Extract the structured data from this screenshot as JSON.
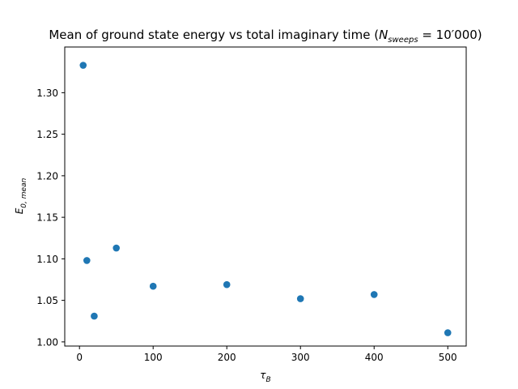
{
  "chart_data": {
    "type": "scatter",
    "title_prefix": "Mean of ground state energy vs total imaginary time (",
    "title_math": {
      "symbol": "N",
      "subscript": "sweeps",
      "equals": " = 10′000"
    },
    "title_suffix": ")",
    "xlabel": {
      "symbol": "τ",
      "subscript": "B"
    },
    "ylabel": {
      "symbol": "E",
      "subscript": "0, mean"
    },
    "xlim": [
      -20,
      525
    ],
    "ylim": [
      0.995,
      1.355
    ],
    "xticks": [
      0,
      100,
      200,
      300,
      400,
      500
    ],
    "yticks": [
      1.0,
      1.05,
      1.1,
      1.15,
      1.2,
      1.25,
      1.3
    ],
    "ytick_decimals": 2,
    "grid": false,
    "series": [
      {
        "color": "#1f77b4",
        "x": [
          5,
          10,
          20,
          50,
          100,
          200,
          300,
          400,
          500
        ],
        "y": [
          1.333,
          1.098,
          1.031,
          1.113,
          1.067,
          1.069,
          1.052,
          1.057,
          1.011
        ]
      }
    ]
  }
}
